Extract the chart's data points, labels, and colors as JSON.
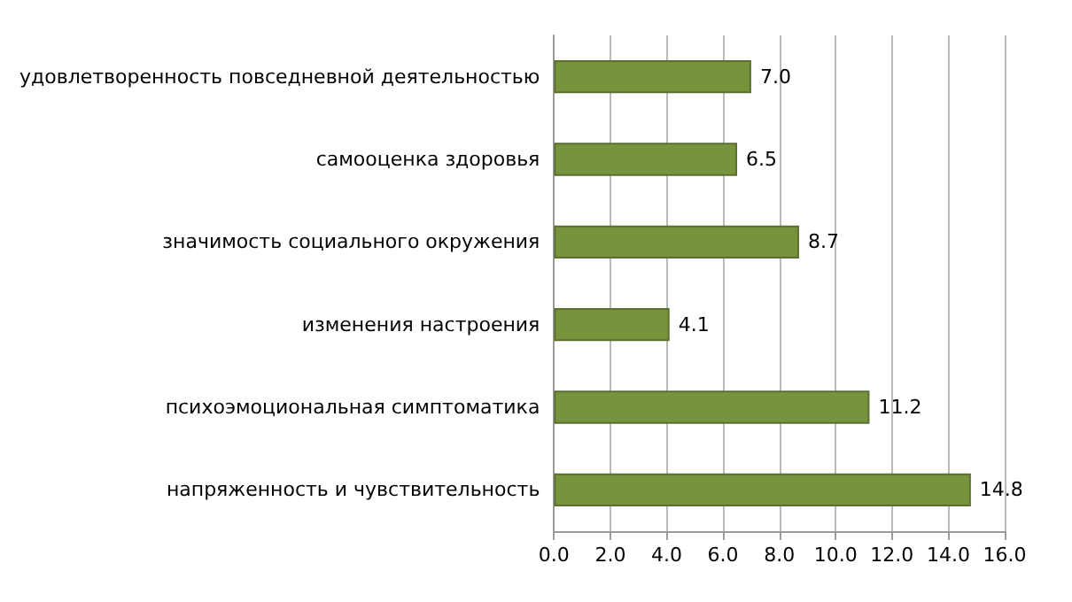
{
  "chart_data": {
    "type": "bar",
    "orientation": "horizontal",
    "categories": [
      "удовлетворенность повседневной деятельностью",
      "самооценка здоровья",
      "значимость социального окружения",
      "изменения настроения",
      "психоэмоциональная симптоматика",
      "напряженность и чувствительность"
    ],
    "values": [
      7.0,
      6.5,
      8.7,
      4.1,
      11.2,
      14.8
    ],
    "value_labels": [
      "7.0",
      "6.5",
      "8.7",
      "4.1",
      "11.2",
      "14.8"
    ],
    "color": "#77933c",
    "xlim": [
      0,
      16
    ],
    "xticks": [
      {
        "value": 0,
        "label": "0.0"
      },
      {
        "value": 2,
        "label": "2.0"
      },
      {
        "value": 4,
        "label": "4.0"
      },
      {
        "value": 6,
        "label": "6.0"
      },
      {
        "value": 8,
        "label": "8.0"
      },
      {
        "value": 10,
        "label": "10.0"
      },
      {
        "value": 12,
        "label": "12.0"
      },
      {
        "value": 14,
        "label": "14.0"
      },
      {
        "value": 16,
        "label": "16.0"
      }
    ],
    "grid": "x"
  }
}
